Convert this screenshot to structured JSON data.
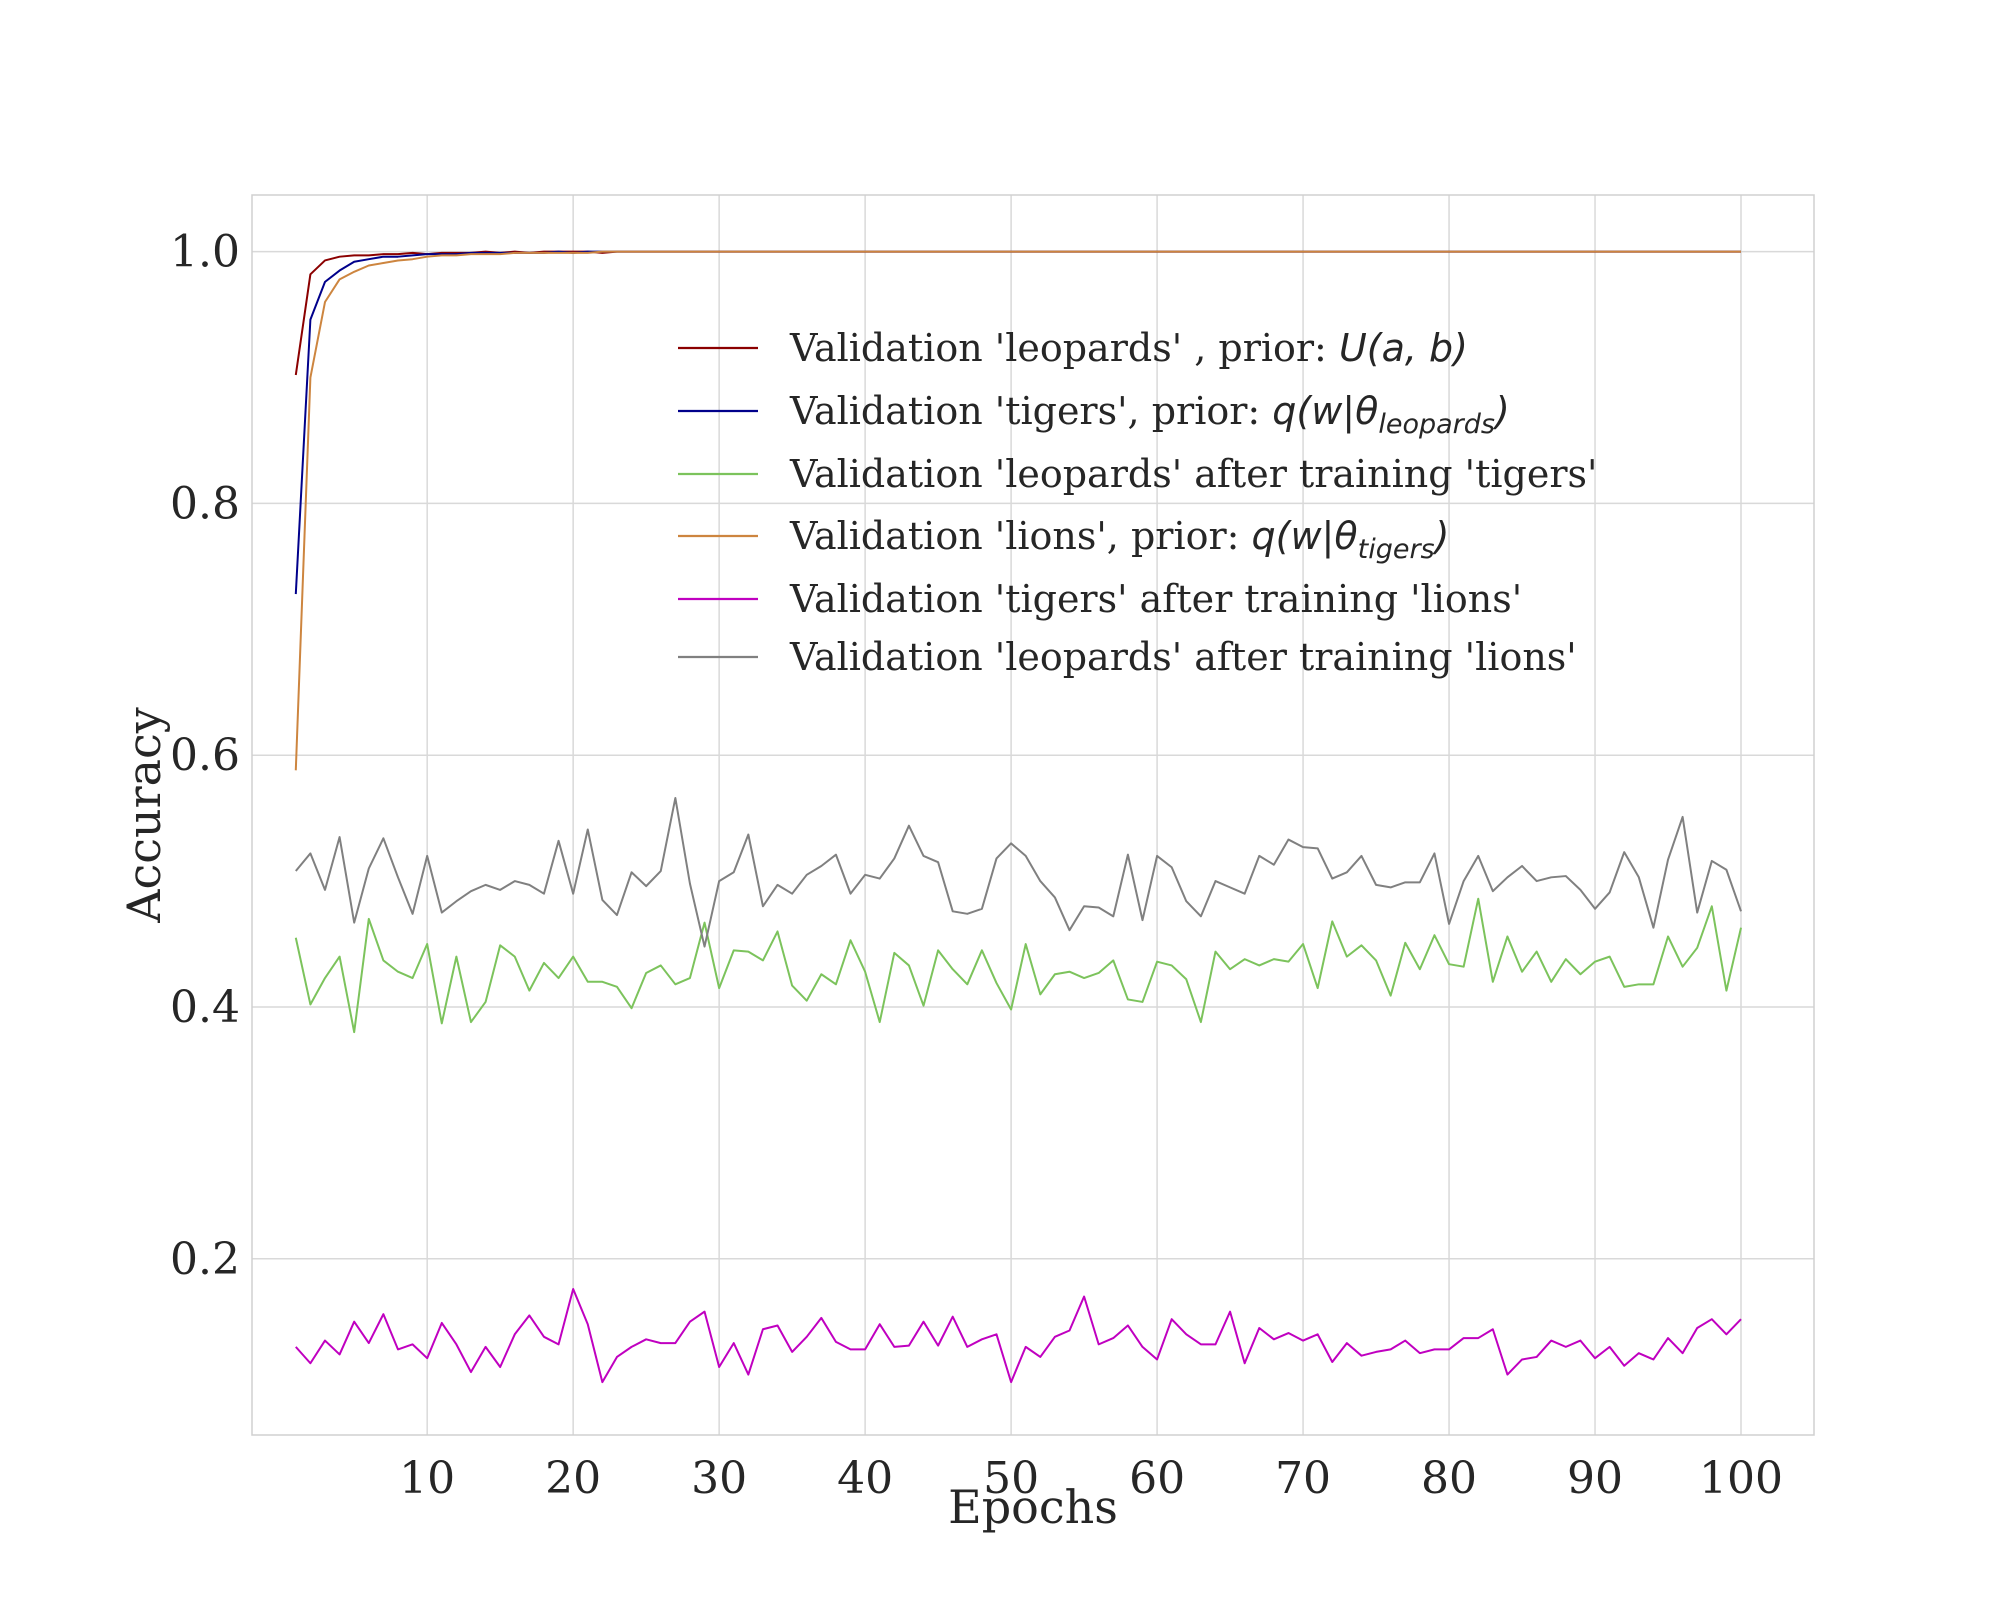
{
  "chart_data": {
    "type": "line",
    "title": "",
    "xlabel": "Epochs",
    "ylabel": "Accuracy",
    "xlim": [
      -2,
      105
    ],
    "ylim": [
      0.06,
      1.045
    ],
    "xticks": [
      10,
      20,
      30,
      40,
      50,
      60,
      70,
      80,
      90,
      100
    ],
    "xtick_labels": [
      "10",
      "20",
      "30",
      "40",
      "50",
      "60",
      "70",
      "80",
      "90",
      "100"
    ],
    "yticks": [
      0.2,
      0.4,
      0.6,
      0.8,
      1.0
    ],
    "ytick_labels": [
      "0.2",
      "0.4",
      "0.6",
      "0.8",
      "1.0"
    ],
    "grid": true,
    "legend_position": "upper-center",
    "x": [
      1,
      2,
      3,
      4,
      5,
      6,
      7,
      8,
      9,
      10,
      11,
      12,
      13,
      14,
      15,
      16,
      17,
      18,
      19,
      20,
      21,
      22,
      23,
      24,
      25,
      26,
      27,
      28,
      29,
      30,
      31,
      32,
      33,
      34,
      35,
      36,
      37,
      38,
      39,
      40,
      41,
      42,
      43,
      44,
      45,
      46,
      47,
      48,
      49,
      50,
      51,
      52,
      53,
      54,
      55,
      56,
      57,
      58,
      59,
      60,
      61,
      62,
      63,
      64,
      65,
      66,
      67,
      68,
      69,
      70,
      71,
      72,
      73,
      74,
      75,
      76,
      77,
      78,
      79,
      80,
      81,
      82,
      83,
      84,
      85,
      86,
      87,
      88,
      89,
      90,
      91,
      92,
      93,
      94,
      95,
      96,
      97,
      98,
      99,
      100
    ],
    "series": [
      {
        "legend_prefix": "Validation 'leopards' , prior: ",
        "legend_math": "U(a, b)",
        "legend_sub": "",
        "legend_math_end": "",
        "color": "#8b0000",
        "values": [
          0.902,
          0.982,
          0.993,
          0.996,
          0.997,
          0.997,
          0.998,
          0.998,
          0.999,
          0.998,
          0.999,
          0.999,
          0.999,
          1.0,
          0.999,
          1.0,
          0.999,
          1.0,
          1.0,
          1.0,
          1.0,
          0.999,
          1.0,
          1.0,
          1.0,
          1.0,
          1.0,
          1.0,
          1.0,
          1.0,
          1.0,
          1.0,
          1.0,
          1.0,
          1.0,
          1.0,
          1.0,
          1.0,
          1.0,
          1.0,
          1.0,
          1.0,
          1.0,
          1.0,
          1.0,
          1.0,
          1.0,
          1.0,
          1.0,
          1.0,
          1.0,
          1.0,
          1.0,
          1.0,
          1.0,
          1.0,
          1.0,
          1.0,
          1.0,
          1.0,
          1.0,
          1.0,
          1.0,
          1.0,
          1.0,
          1.0,
          1.0,
          1.0,
          1.0,
          1.0,
          1.0,
          1.0,
          1.0,
          1.0,
          1.0,
          1.0,
          1.0,
          1.0,
          1.0,
          1.0,
          1.0,
          1.0,
          1.0,
          1.0,
          1.0,
          1.0,
          1.0,
          1.0,
          1.0,
          1.0,
          1.0,
          1.0,
          1.0,
          1.0,
          1.0,
          1.0,
          1.0,
          1.0,
          1.0,
          1.0
        ]
      },
      {
        "legend_prefix": "Validation 'tigers', prior: ",
        "legend_math": "q(w|θ",
        "legend_sub": "leopards",
        "legend_math_end": ")",
        "color": "#00008b",
        "values": [
          0.728,
          0.946,
          0.976,
          0.985,
          0.992,
          0.994,
          0.996,
          0.996,
          0.997,
          0.998,
          0.998,
          0.998,
          0.999,
          0.999,
          0.999,
          0.999,
          0.999,
          0.999,
          1.0,
          0.999,
          1.0,
          1.0,
          1.0,
          1.0,
          1.0,
          1.0,
          1.0,
          1.0,
          1.0,
          1.0,
          1.0,
          1.0,
          1.0,
          1.0,
          1.0,
          1.0,
          1.0,
          1.0,
          1.0,
          1.0,
          1.0,
          1.0,
          1.0,
          1.0,
          1.0,
          1.0,
          1.0,
          1.0,
          1.0,
          1.0,
          1.0,
          1.0,
          1.0,
          1.0,
          1.0,
          1.0,
          1.0,
          1.0,
          1.0,
          1.0,
          1.0,
          1.0,
          1.0,
          1.0,
          1.0,
          1.0,
          1.0,
          1.0,
          1.0,
          1.0,
          1.0,
          1.0,
          1.0,
          1.0,
          1.0,
          1.0,
          1.0,
          1.0,
          1.0,
          1.0,
          1.0,
          1.0,
          1.0,
          1.0,
          1.0,
          1.0,
          1.0,
          1.0,
          1.0,
          1.0,
          1.0,
          1.0,
          1.0,
          1.0,
          1.0,
          1.0,
          1.0,
          1.0,
          1.0,
          1.0
        ]
      },
      {
        "legend_prefix": "Validation 'leopards' after training 'tigers'",
        "legend_math": "",
        "legend_sub": "",
        "legend_math_end": "",
        "color": "#7cc35c",
        "values": [
          0.455,
          0.402,
          0.423,
          0.44,
          0.38,
          0.47,
          0.437,
          0.428,
          0.423,
          0.45,
          0.387,
          0.44,
          0.388,
          0.404,
          0.449,
          0.44,
          0.413,
          0.435,
          0.423,
          0.44,
          0.42,
          0.42,
          0.416,
          0.399,
          0.427,
          0.433,
          0.418,
          0.423,
          0.467,
          0.415,
          0.445,
          0.444,
          0.437,
          0.46,
          0.417,
          0.405,
          0.426,
          0.418,
          0.453,
          0.428,
          0.388,
          0.443,
          0.433,
          0.401,
          0.445,
          0.43,
          0.418,
          0.445,
          0.419,
          0.398,
          0.45,
          0.41,
          0.426,
          0.428,
          0.423,
          0.427,
          0.437,
          0.406,
          0.404,
          0.436,
          0.433,
          0.422,
          0.388,
          0.444,
          0.43,
          0.438,
          0.433,
          0.438,
          0.436,
          0.45,
          0.415,
          0.468,
          0.44,
          0.449,
          0.437,
          0.409,
          0.451,
          0.43,
          0.457,
          0.434,
          0.432,
          0.486,
          0.42,
          0.456,
          0.428,
          0.444,
          0.42,
          0.438,
          0.426,
          0.436,
          0.44,
          0.416,
          0.418,
          0.418,
          0.456,
          0.432,
          0.447,
          0.48,
          0.413,
          0.463
        ]
      },
      {
        "legend_prefix": "Validation 'lions', prior: ",
        "legend_math": "q(w|θ",
        "legend_sub": "tigers",
        "legend_math_end": ")",
        "color": "#cd853f",
        "values": [
          0.588,
          0.9,
          0.96,
          0.978,
          0.984,
          0.989,
          0.991,
          0.993,
          0.994,
          0.996,
          0.997,
          0.997,
          0.998,
          0.998,
          0.998,
          0.999,
          0.999,
          0.999,
          0.999,
          0.999,
          0.999,
          1.0,
          1.0,
          1.0,
          1.0,
          1.0,
          1.0,
          1.0,
          1.0,
          1.0,
          1.0,
          1.0,
          1.0,
          1.0,
          1.0,
          1.0,
          1.0,
          1.0,
          1.0,
          1.0,
          1.0,
          1.0,
          1.0,
          1.0,
          1.0,
          1.0,
          1.0,
          1.0,
          1.0,
          1.0,
          1.0,
          1.0,
          1.0,
          1.0,
          1.0,
          1.0,
          1.0,
          1.0,
          1.0,
          1.0,
          1.0,
          1.0,
          1.0,
          1.0,
          1.0,
          1.0,
          1.0,
          1.0,
          1.0,
          1.0,
          1.0,
          1.0,
          1.0,
          1.0,
          1.0,
          1.0,
          1.0,
          1.0,
          1.0,
          1.0,
          1.0,
          1.0,
          1.0,
          1.0,
          1.0,
          1.0,
          1.0,
          1.0,
          1.0,
          1.0,
          1.0,
          1.0,
          1.0,
          1.0,
          1.0,
          1.0,
          1.0,
          1.0,
          1.0,
          1.0
        ]
      },
      {
        "legend_prefix": "Validation 'tigers' after training 'lions'",
        "legend_math": "",
        "legend_sub": "",
        "legend_math_end": "",
        "color": "#c000c0",
        "values": [
          0.13,
          0.117,
          0.135,
          0.124,
          0.15,
          0.133,
          0.156,
          0.128,
          0.132,
          0.121,
          0.149,
          0.132,
          0.11,
          0.13,
          0.114,
          0.14,
          0.155,
          0.138,
          0.132,
          0.176,
          0.148,
          0.102,
          0.122,
          0.13,
          0.136,
          0.133,
          0.133,
          0.15,
          0.158,
          0.114,
          0.133,
          0.108,
          0.144,
          0.147,
          0.126,
          0.138,
          0.153,
          0.134,
          0.128,
          0.128,
          0.148,
          0.13,
          0.131,
          0.15,
          0.131,
          0.154,
          0.13,
          0.136,
          0.14,
          0.102,
          0.13,
          0.122,
          0.138,
          0.143,
          0.17,
          0.132,
          0.137,
          0.147,
          0.13,
          0.12,
          0.152,
          0.14,
          0.132,
          0.132,
          0.158,
          0.117,
          0.145,
          0.136,
          0.141,
          0.135,
          0.14,
          0.118,
          0.133,
          0.123,
          0.126,
          0.128,
          0.135,
          0.125,
          0.128,
          0.128,
          0.137,
          0.137,
          0.144,
          0.108,
          0.12,
          0.122,
          0.135,
          0.13,
          0.135,
          0.121,
          0.13,
          0.115,
          0.125,
          0.12,
          0.137,
          0.125,
          0.145,
          0.152,
          0.14,
          0.152
        ]
      },
      {
        "legend_prefix": "Validation 'leopards' after training 'lions'",
        "legend_math": "",
        "legend_sub": "",
        "legend_math_end": "",
        "color": "#808080",
        "values": [
          0.508,
          0.522,
          0.493,
          0.535,
          0.467,
          0.51,
          0.534,
          0.503,
          0.474,
          0.52,
          0.475,
          0.484,
          0.492,
          0.497,
          0.493,
          0.5,
          0.497,
          0.49,
          0.532,
          0.49,
          0.541,
          0.485,
          0.473,
          0.507,
          0.496,
          0.508,
          0.566,
          0.498,
          0.448,
          0.5,
          0.507,
          0.537,
          0.48,
          0.497,
          0.49,
          0.505,
          0.512,
          0.521,
          0.49,
          0.505,
          0.502,
          0.518,
          0.544,
          0.52,
          0.515,
          0.476,
          0.474,
          0.478,
          0.518,
          0.53,
          0.52,
          0.5,
          0.487,
          0.461,
          0.48,
          0.479,
          0.472,
          0.521,
          0.469,
          0.52,
          0.511,
          0.484,
          0.472,
          0.5,
          0.495,
          0.49,
          0.52,
          0.513,
          0.533,
          0.527,
          0.526,
          0.502,
          0.507,
          0.52,
          0.497,
          0.495,
          0.499,
          0.499,
          0.522,
          0.466,
          0.5,
          0.52,
          0.492,
          0.503,
          0.512,
          0.5,
          0.503,
          0.504,
          0.493,
          0.478,
          0.491,
          0.523,
          0.503,
          0.463,
          0.517,
          0.551,
          0.475,
          0.516,
          0.509,
          0.476
        ]
      }
    ]
  }
}
